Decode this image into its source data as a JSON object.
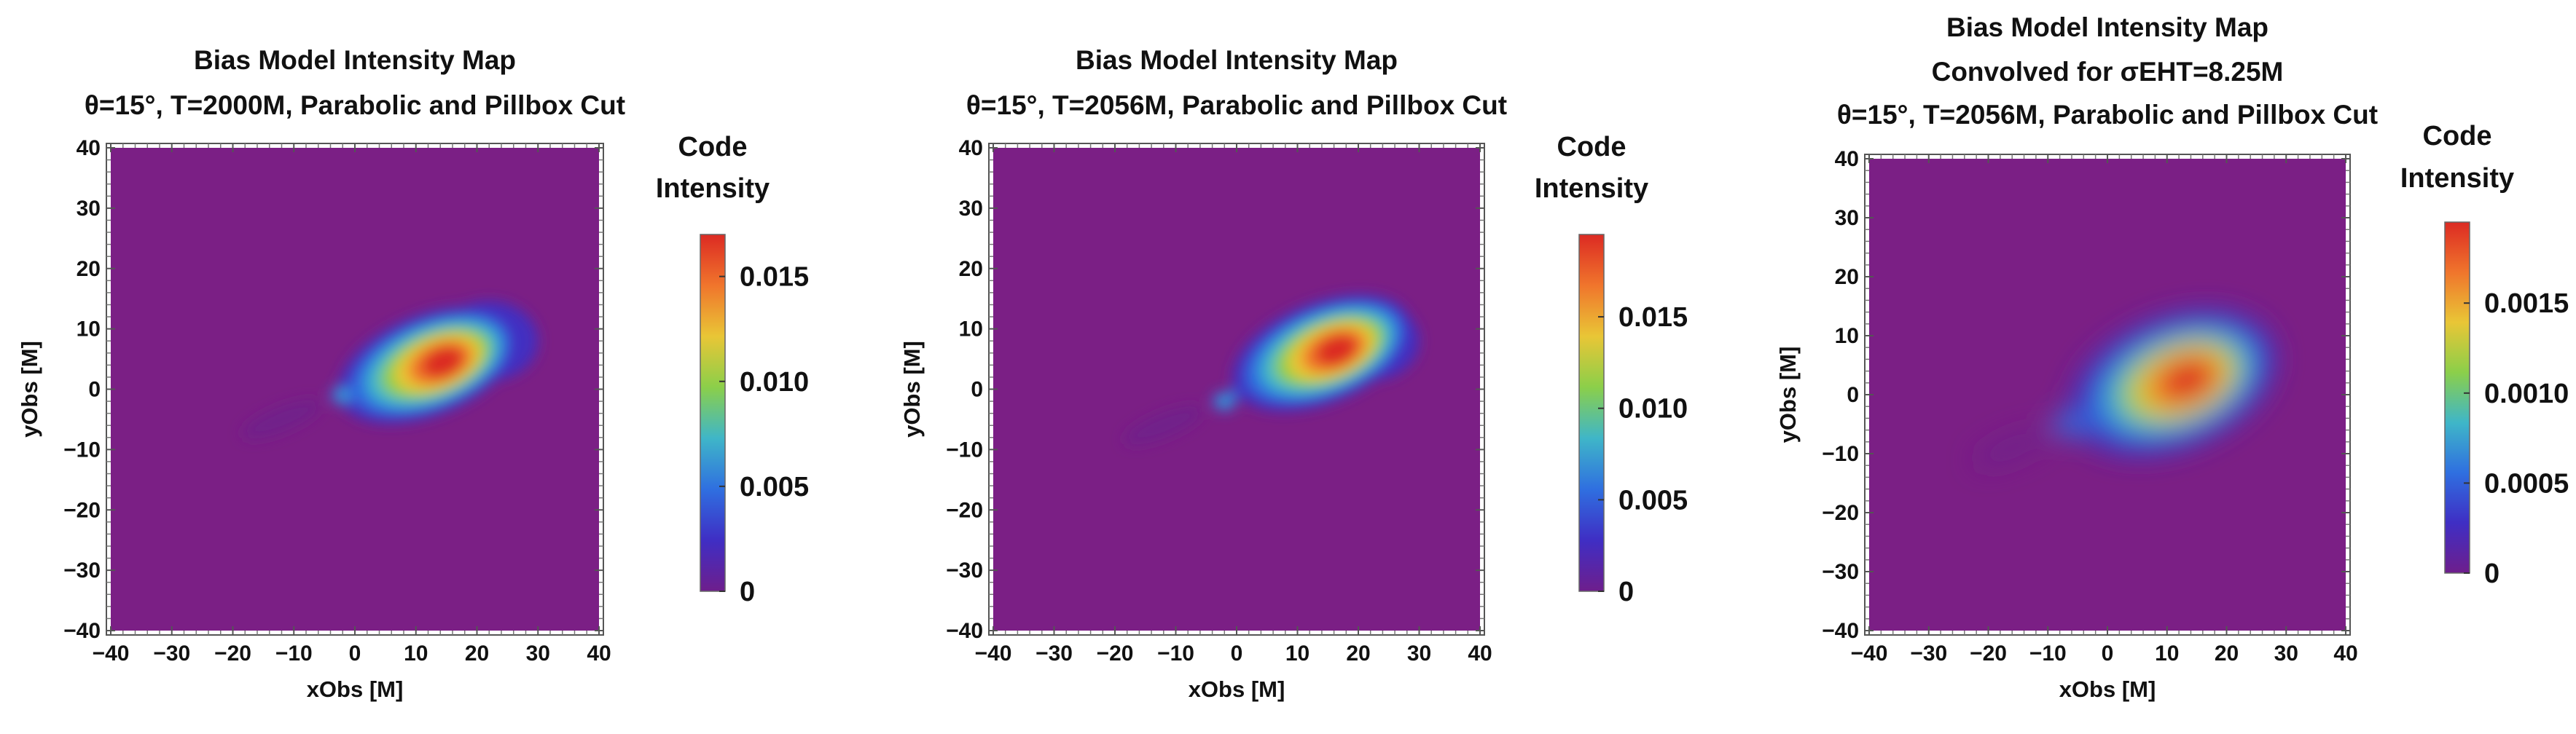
{
  "chart_data": [
    {
      "type": "heatmap",
      "title_lines": [
        "Bias Model Intensity Map",
        "θ=15°, T=2000M, Parabolic and Pillbox Cut"
      ],
      "xlabel": "xObs [M]",
      "ylabel": "yObs [M]",
      "xlim": [
        -40,
        40
      ],
      "ylim": [
        -40,
        40
      ],
      "xticks": [
        -40,
        -30,
        -20,
        -10,
        0,
        10,
        20,
        30,
        40
      ],
      "yticks": [
        -40,
        -30,
        -20,
        -10,
        0,
        10,
        20,
        30,
        40
      ],
      "colorbar": {
        "title_lines": [
          "Code",
          "Intensity"
        ],
        "range": [
          0,
          0.017
        ],
        "ticks": [
          {
            "value": 0,
            "label": "0"
          },
          {
            "value": 0.005,
            "label": "0.005"
          },
          {
            "value": 0.01,
            "label": "0.010"
          },
          {
            "value": 0.015,
            "label": "0.015"
          }
        ]
      },
      "emission": {
        "core_center": [
          12,
          4
        ],
        "tail_center": [
          22,
          8
        ],
        "knot_center": [
          -2,
          -1
        ],
        "convolved": false
      }
    },
    {
      "type": "heatmap",
      "title_lines": [
        "Bias Model Intensity Map",
        "θ=15°, T=2056M, Parabolic and Pillbox Cut"
      ],
      "xlabel": "xObs [M]",
      "ylabel": "yObs [M]",
      "xlim": [
        -40,
        40
      ],
      "ylim": [
        -40,
        40
      ],
      "xticks": [
        -40,
        -30,
        -20,
        -10,
        0,
        10,
        20,
        30,
        40
      ],
      "yticks": [
        -40,
        -30,
        -20,
        -10,
        0,
        10,
        20,
        30,
        40
      ],
      "colorbar": {
        "title_lines": [
          "Code",
          "Intensity"
        ],
        "range": [
          0,
          0.0195
        ],
        "ticks": [
          {
            "value": 0,
            "label": "0"
          },
          {
            "value": 0.005,
            "label": "0.005"
          },
          {
            "value": 0.01,
            "label": "0.010"
          },
          {
            "value": 0.015,
            "label": "0.015"
          }
        ]
      },
      "emission": {
        "core_center": [
          14,
          6
        ],
        "tail_center": [
          22,
          8
        ],
        "knot_center": [
          -2,
          -2
        ],
        "convolved": false
      }
    },
    {
      "type": "heatmap",
      "title_lines": [
        "Bias Model Intensity Map",
        "Convolved for σEHT=8.25M",
        "θ=15°, T=2056M, Parabolic and Pillbox Cut"
      ],
      "xlabel": "xObs [M]",
      "ylabel": "yObs [M]",
      "xlim": [
        -40,
        40
      ],
      "ylim": [
        -40,
        40
      ],
      "xticks": [
        -40,
        -30,
        -20,
        -10,
        0,
        10,
        20,
        30,
        40
      ],
      "yticks": [
        -40,
        -30,
        -20,
        -10,
        0,
        10,
        20,
        30,
        40
      ],
      "colorbar": {
        "title_lines": [
          "Code",
          "Intensity"
        ],
        "range": [
          0,
          0.00195
        ],
        "ticks": [
          {
            "value": 0,
            "label": "0"
          },
          {
            "value": 0.0005,
            "label": "0.0005"
          },
          {
            "value": 0.001,
            "label": "0.0010"
          },
          {
            "value": 0.0015,
            "label": "0.0015"
          }
        ]
      },
      "emission": {
        "core_center": [
          11,
          2
        ],
        "tail_center": [
          17,
          4
        ],
        "knot_center": [
          -6,
          -5
        ],
        "convolved": true
      }
    }
  ],
  "colors": {
    "background_field": "#7b1f85",
    "colormap": [
      "#6e1e8c",
      "#3f2ec4",
      "#2f6fe0",
      "#3fb6c8",
      "#8bcf4a",
      "#e9c636",
      "#f0752c",
      "#dc2a23"
    ]
  }
}
